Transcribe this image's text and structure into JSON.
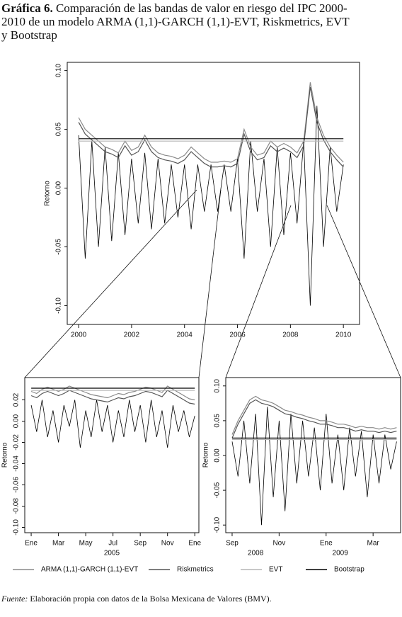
{
  "title_label": "Gráfica 6.",
  "title": "Comparación de las bandas de valor en riesgo del IPC 2000-2010 de un modelo ARMA (1,1)-GARCH (1,1)-EVT, Riskmetrics, EVT y Bootstrap",
  "source_label": "Fuente:",
  "source": "Elaboración propia con datos de la Bolsa Mexicana de Valores (BMV).",
  "chart_data": [
    {
      "type": "line",
      "ylabel": "Retorno",
      "xlim": [
        1999.57,
        2010.61
      ],
      "xticks": [
        2000,
        2002,
        2004,
        2006,
        2008,
        2010
      ],
      "ylim": [
        -0.116,
        0.107
      ],
      "yticks": [
        {
          "value": 0.1,
          "label": "0.10"
        },
        0.05,
        {
          "value": 0,
          "label": "0.00"
        },
        -0.05,
        {
          "value": -0.1,
          "label": "-0.10"
        }
      ],
      "x": [
        2000,
        2000.25,
        2000.5,
        2000.75,
        2001,
        2001.25,
        2001.5,
        2001.75,
        2002,
        2002.25,
        2002.5,
        2002.75,
        2003,
        2003.25,
        2003.5,
        2003.75,
        2004,
        2004.25,
        2004.5,
        2004.75,
        2005,
        2005.25,
        2005.5,
        2005.75,
        2006,
        2006.25,
        2006.5,
        2006.75,
        2007,
        2007.25,
        2007.5,
        2007.75,
        2008,
        2008.25,
        2008.5,
        2008.75,
        2009,
        2009.25,
        2009.5,
        2009.75,
        2010
      ],
      "color": "#000000",
      "values": [
        0.045,
        -0.06,
        0.04,
        -0.05,
        0.035,
        -0.045,
        0.03,
        -0.04,
        0.025,
        -0.03,
        0.03,
        -0.035,
        0.025,
        -0.03,
        0.02,
        -0.025,
        0.02,
        -0.035,
        0.02,
        -0.02,
        0.02,
        -0.02,
        0.02,
        -0.02,
        0.025,
        -0.06,
        0.04,
        -0.02,
        0.025,
        -0.05,
        0.035,
        -0.04,
        0.03,
        -0.03,
        0.04,
        -0.1,
        0.07,
        -0.05,
        0.035,
        -0.02,
        0.02
      ],
      "series": [
        {
          "name": "ARMA (1,1)-GARCH (1,1)-EVT",
          "color": "#8a8a8a",
          "values": [
            0.06,
            0.05,
            0.045,
            0.04,
            0.035,
            0.033,
            0.03,
            0.04,
            0.032,
            0.035,
            0.045,
            0.035,
            0.03,
            0.028,
            0.027,
            0.025,
            0.028,
            0.035,
            0.03,
            0.025,
            0.022,
            0.022,
            0.023,
            0.022,
            0.025,
            0.05,
            0.035,
            0.028,
            0.03,
            0.04,
            0.035,
            0.038,
            0.035,
            0.03,
            0.04,
            0.09,
            0.06,
            0.045,
            0.035,
            0.028,
            0.022
          ]
        },
        {
          "name": "Riskmetrics",
          "color": "#555555",
          "values": [
            0.056,
            0.046,
            0.041,
            0.036,
            0.031,
            0.029,
            0.026,
            0.036,
            0.028,
            0.031,
            0.041,
            0.031,
            0.026,
            0.024,
            0.023,
            0.021,
            0.024,
            0.031,
            0.026,
            0.021,
            0.018,
            0.018,
            0.019,
            0.018,
            0.021,
            0.046,
            0.031,
            0.024,
            0.026,
            0.036,
            0.031,
            0.034,
            0.031,
            0.026,
            0.036,
            0.086,
            0.056,
            0.041,
            0.031,
            0.024,
            0.018
          ]
        },
        {
          "name": "EVT",
          "color": "#b5b5b5",
          "values": [
            0.04,
            0.04,
            0.04,
            0.04,
            0.04,
            0.04,
            0.04,
            0.04,
            0.04,
            0.04,
            0.04,
            0.04,
            0.04,
            0.04,
            0.04,
            0.04,
            0.04,
            0.04,
            0.04,
            0.04,
            0.04,
            0.04,
            0.04,
            0.04,
            0.04,
            0.04,
            0.04,
            0.04,
            0.04,
            0.04,
            0.04,
            0.04,
            0.04,
            0.04,
            0.04,
            0.04,
            0.04,
            0.04,
            0.04,
            0.04,
            0.04
          ]
        },
        {
          "name": "Bootstrap",
          "color": "#000000",
          "values": [
            0.042,
            0.042,
            0.042,
            0.042,
            0.042,
            0.042,
            0.042,
            0.042,
            0.042,
            0.042,
            0.042,
            0.042,
            0.042,
            0.042,
            0.042,
            0.042,
            0.042,
            0.042,
            0.042,
            0.042,
            0.042,
            0.042,
            0.042,
            0.042,
            0.042,
            0.042,
            0.042,
            0.042,
            0.042,
            0.042,
            0.042,
            0.042,
            0.042,
            0.042,
            0.042,
            0.042,
            0.042,
            0.042,
            0.042,
            0.042,
            0.042
          ]
        }
      ]
    },
    {
      "type": "line",
      "ylabel": "Retorno",
      "xlabel": "2005",
      "xlim": [
        -0.47,
        12.3
      ],
      "xticks": [
        {
          "value": 0,
          "label": "Ene"
        },
        {
          "value": 2,
          "label": "Mar"
        },
        {
          "value": 4,
          "label": "May"
        },
        {
          "value": 6,
          "label": "Jul"
        },
        {
          "value": 8,
          "label": "Sep"
        },
        {
          "value": 10,
          "label": "Nov"
        },
        {
          "value": 12,
          "label": "Ene"
        }
      ],
      "ylim": [
        -0.105,
        0.041
      ],
      "yticks": [
        0.02,
        {
          "value": 0,
          "label": "0.00"
        },
        -0.02,
        -0.04,
        -0.06,
        -0.08,
        {
          "value": -0.1,
          "label": "-0.10"
        }
      ],
      "x": [
        0,
        0.4,
        0.8,
        1.2,
        1.6,
        2,
        2.4,
        2.8,
        3.2,
        3.6,
        4,
        4.4,
        4.8,
        5.2,
        5.6,
        6,
        6.4,
        6.8,
        7.2,
        7.6,
        8,
        8.4,
        8.8,
        9.2,
        9.6,
        10,
        10.4,
        10.8,
        11.2,
        11.6,
        12
      ],
      "color": "#000000",
      "values": [
        0.015,
        -0.01,
        0.02,
        -0.015,
        0.01,
        -0.02,
        0.015,
        -0.005,
        0.02,
        -0.025,
        0.01,
        -0.015,
        0.02,
        -0.01,
        0.015,
        -0.02,
        0.01,
        -0.015,
        0.02,
        -0.01,
        0.015,
        -0.02,
        0.02,
        -0.015,
        0.01,
        -0.025,
        0.015,
        -0.01,
        0.01,
        -0.015,
        0.005
      ],
      "series": [
        {
          "color": "#8a8a8a",
          "values": [
            0.028,
            0.026,
            0.03,
            0.032,
            0.03,
            0.028,
            0.03,
            0.033,
            0.031,
            0.029,
            0.027,
            0.025,
            0.024,
            0.023,
            0.022,
            0.024,
            0.026,
            0.025,
            0.027,
            0.028,
            0.03,
            0.032,
            0.031,
            0.029,
            0.027,
            0.033,
            0.03,
            0.027,
            0.024,
            0.021,
            0.02
          ]
        },
        {
          "color": "#555555",
          "values": [
            0.024,
            0.022,
            0.026,
            0.028,
            0.026,
            0.024,
            0.026,
            0.029,
            0.027,
            0.025,
            0.023,
            0.021,
            0.02,
            0.019,
            0.018,
            0.02,
            0.022,
            0.021,
            0.023,
            0.024,
            0.026,
            0.028,
            0.027,
            0.025,
            0.023,
            0.029,
            0.026,
            0.023,
            0.02,
            0.017,
            0.016
          ]
        },
        {
          "color": "#b5b5b5",
          "values": [
            0.029,
            0.029,
            0.029,
            0.029,
            0.029,
            0.029,
            0.029,
            0.029,
            0.029,
            0.029,
            0.029,
            0.029,
            0.029,
            0.029,
            0.029,
            0.029,
            0.029,
            0.029,
            0.029,
            0.029,
            0.029,
            0.029,
            0.029,
            0.029,
            0.029,
            0.029,
            0.029,
            0.029,
            0.029,
            0.029,
            0.029
          ]
        },
        {
          "color": "#000000",
          "values": [
            0.031,
            0.031,
            0.031,
            0.031,
            0.031,
            0.031,
            0.031,
            0.031,
            0.031,
            0.031,
            0.031,
            0.031,
            0.031,
            0.031,
            0.031,
            0.031,
            0.031,
            0.031,
            0.031,
            0.031,
            0.031,
            0.031,
            0.031,
            0.031,
            0.031,
            0.031,
            0.031,
            0.031,
            0.031,
            0.031,
            0.031
          ]
        }
      ]
    },
    {
      "type": "line",
      "ylabel": "Retorno",
      "x_groups": [
        {
          "label": "2008",
          "value": 1
        },
        {
          "label": "2009",
          "value": 4.6
        }
      ],
      "xlim": [
        -0.27,
        7.17
      ],
      "xticks": [
        {
          "value": 0,
          "label": "Sep"
        },
        {
          "value": 2,
          "label": "Nov"
        },
        {
          "value": 4,
          "label": "Ene"
        },
        {
          "value": 6,
          "label": "Mar"
        }
      ],
      "ylim": [
        -0.111,
        0.112
      ],
      "yticks": [
        {
          "value": 0.1,
          "label": "0.10"
        },
        0.05,
        {
          "value": 0,
          "label": "0.00"
        },
        -0.05,
        {
          "value": -0.1,
          "label": "-0.10"
        }
      ],
      "x": [
        0,
        0.25,
        0.5,
        0.75,
        1,
        1.25,
        1.5,
        1.75,
        2,
        2.25,
        2.5,
        2.75,
        3,
        3.25,
        3.5,
        3.75,
        4,
        4.25,
        4.5,
        4.75,
        5,
        5.25,
        5.5,
        5.75,
        6,
        6.25,
        6.5,
        6.75,
        7
      ],
      "color": "#000000",
      "values": [
        0.02,
        -0.03,
        0.05,
        -0.04,
        0.06,
        -0.1,
        0.07,
        -0.06,
        0.05,
        -0.08,
        0.06,
        -0.04,
        0.05,
        -0.03,
        0.04,
        -0.05,
        0.06,
        -0.04,
        0.03,
        -0.05,
        0.04,
        -0.03,
        0.035,
        -0.06,
        0.03,
        -0.04,
        0.03,
        -0.02,
        0.02
      ],
      "series": [
        {
          "color": "#8a8a8a",
          "values": [
            0.03,
            0.05,
            0.065,
            0.08,
            0.085,
            0.08,
            0.078,
            0.075,
            0.07,
            0.065,
            0.063,
            0.06,
            0.058,
            0.055,
            0.053,
            0.05,
            0.05,
            0.048,
            0.045,
            0.045,
            0.043,
            0.04,
            0.042,
            0.04,
            0.04,
            0.038,
            0.04,
            0.038,
            0.04
          ]
        },
        {
          "color": "#555555",
          "values": [
            0.025,
            0.045,
            0.06,
            0.075,
            0.08,
            0.075,
            0.073,
            0.07,
            0.065,
            0.06,
            0.058,
            0.055,
            0.053,
            0.05,
            0.048,
            0.045,
            0.045,
            0.043,
            0.04,
            0.04,
            0.038,
            0.035,
            0.037,
            0.035,
            0.035,
            0.033,
            0.035,
            0.033,
            0.035
          ]
        },
        {
          "color": "#b5b5b5",
          "values": [
            0.023,
            0.023,
            0.023,
            0.023,
            0.023,
            0.023,
            0.023,
            0.023,
            0.023,
            0.023,
            0.023,
            0.023,
            0.023,
            0.023,
            0.023,
            0.023,
            0.023,
            0.023,
            0.023,
            0.023,
            0.023,
            0.023,
            0.023,
            0.023,
            0.023,
            0.023,
            0.023,
            0.023,
            0.023
          ]
        },
        {
          "color": "#000000",
          "values": [
            0.025,
            0.025,
            0.025,
            0.025,
            0.025,
            0.025,
            0.025,
            0.025,
            0.025,
            0.025,
            0.025,
            0.025,
            0.025,
            0.025,
            0.025,
            0.025,
            0.025,
            0.025,
            0.025,
            0.025,
            0.025,
            0.025,
            0.025,
            0.025,
            0.025,
            0.025,
            0.025,
            0.025,
            0.025
          ]
        }
      ]
    }
  ]
}
